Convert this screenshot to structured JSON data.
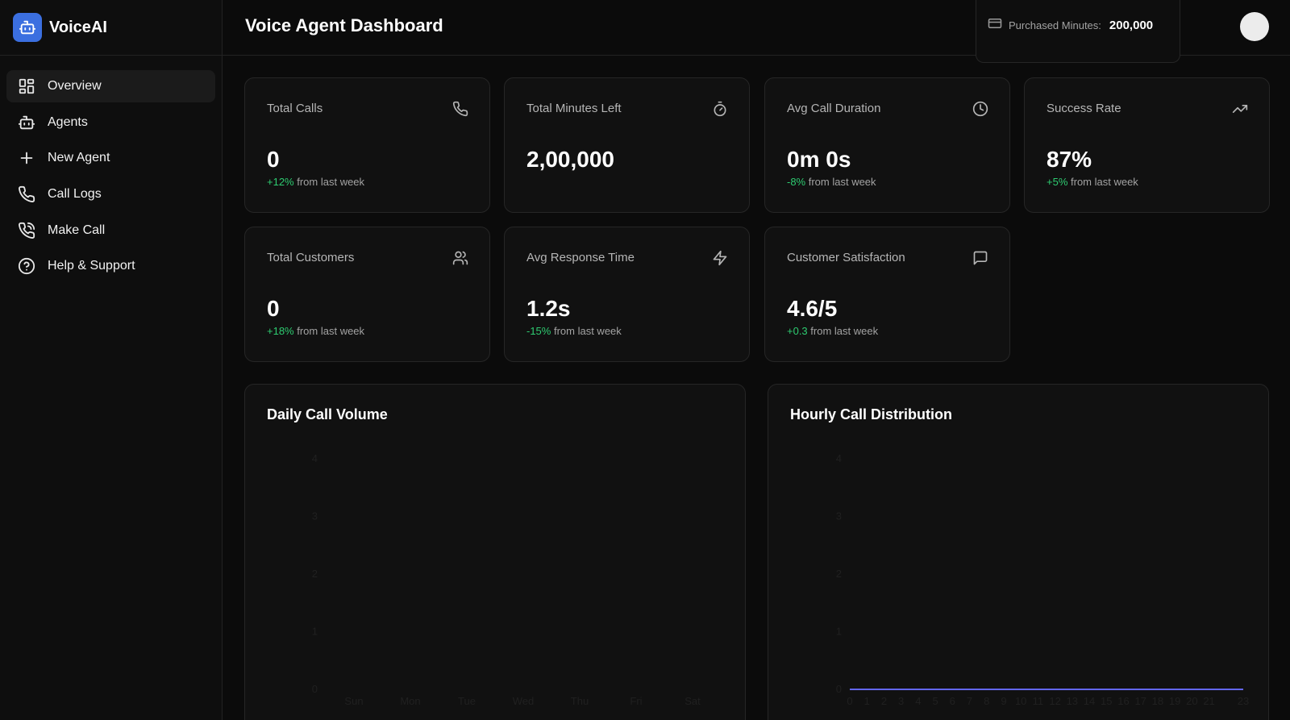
{
  "brand": {
    "name": "VoiceAI",
    "icon": "robot-icon",
    "color": "#3b6fe0"
  },
  "nav": {
    "items": [
      {
        "label": "Overview",
        "icon": "grid-icon",
        "active": true
      },
      {
        "label": "Agents",
        "icon": "robot-icon"
      },
      {
        "label": "New Agent",
        "icon": "plus-icon"
      },
      {
        "label": "Call Logs",
        "icon": "phone-icon"
      },
      {
        "label": "Make Call",
        "icon": "phone-call-icon"
      },
      {
        "label": "Help & Support",
        "icon": "help-circle-icon"
      }
    ]
  },
  "header": {
    "title": "Voice Agent Dashboard",
    "minutes_label": "Purchased Minutes:",
    "minutes_value": "200,000",
    "minutes_icon": "credit-card-icon"
  },
  "stats": [
    {
      "title": "Total Calls",
      "value": "0",
      "delta": "+12%",
      "delta_suffix": " from last week",
      "icon": "phone-icon"
    },
    {
      "title": "Total Minutes Left",
      "value": "2,00,000",
      "icon": "timer-icon"
    },
    {
      "title": "Avg Call Duration",
      "value": "0m 0s",
      "delta": "-8%",
      "delta_suffix": " from last week",
      "icon": "clock-icon"
    },
    {
      "title": "Success Rate",
      "value": "87%",
      "delta": "+5%",
      "delta_suffix": " from last week",
      "icon": "trending-up-icon"
    },
    {
      "title": "Total Customers",
      "value": "0",
      "delta": "+18%",
      "delta_suffix": " from last week",
      "icon": "users-icon"
    },
    {
      "title": "Avg Response Time",
      "value": "1.2s",
      "delta": "-15%",
      "delta_suffix": " from last week",
      "icon": "zap-icon"
    },
    {
      "title": "Customer Satisfaction",
      "value": "4.6/5",
      "delta": "+0.3",
      "delta_suffix": " from last week",
      "icon": "message-square-icon"
    }
  ],
  "colors": {
    "delta": "#2ecc71",
    "line": "#6366f1"
  },
  "chart_data": [
    {
      "type": "bar",
      "title": "Daily Call Volume",
      "categories": [
        "Sun",
        "Mon",
        "Tue",
        "Wed",
        "Thu",
        "Fri",
        "Sat"
      ],
      "values": [
        0,
        0,
        0,
        0,
        0,
        0,
        0
      ],
      "ylim": [
        0,
        4
      ],
      "yticks": [
        "0",
        "1",
        "2",
        "3",
        "4"
      ],
      "xlabel": "",
      "ylabel": ""
    },
    {
      "type": "line",
      "title": "Hourly Call Distribution",
      "x": [
        "0",
        "1",
        "2",
        "3",
        "4",
        "5",
        "6",
        "7",
        "8",
        "9",
        "10",
        "11",
        "12",
        "13",
        "14",
        "15",
        "16",
        "17",
        "18",
        "19",
        "20",
        "21",
        "22",
        "23"
      ],
      "values": [
        0,
        0,
        0,
        0,
        0,
        0,
        0,
        0,
        0,
        0,
        0,
        0,
        0,
        0,
        0,
        0,
        0,
        0,
        0,
        0,
        0,
        0,
        0,
        0
      ],
      "ylim": [
        0,
        4
      ],
      "yticks": [
        "0",
        "1",
        "2",
        "3",
        "4"
      ],
      "xticks_shown": [
        "0",
        "1",
        "2",
        "3",
        "4",
        "5",
        "6",
        "7",
        "8",
        "9",
        "10",
        "11",
        "12",
        "13",
        "14",
        "15",
        "16",
        "17",
        "18",
        "19",
        "20",
        "21",
        "23"
      ],
      "xlabel": "",
      "ylabel": ""
    }
  ]
}
